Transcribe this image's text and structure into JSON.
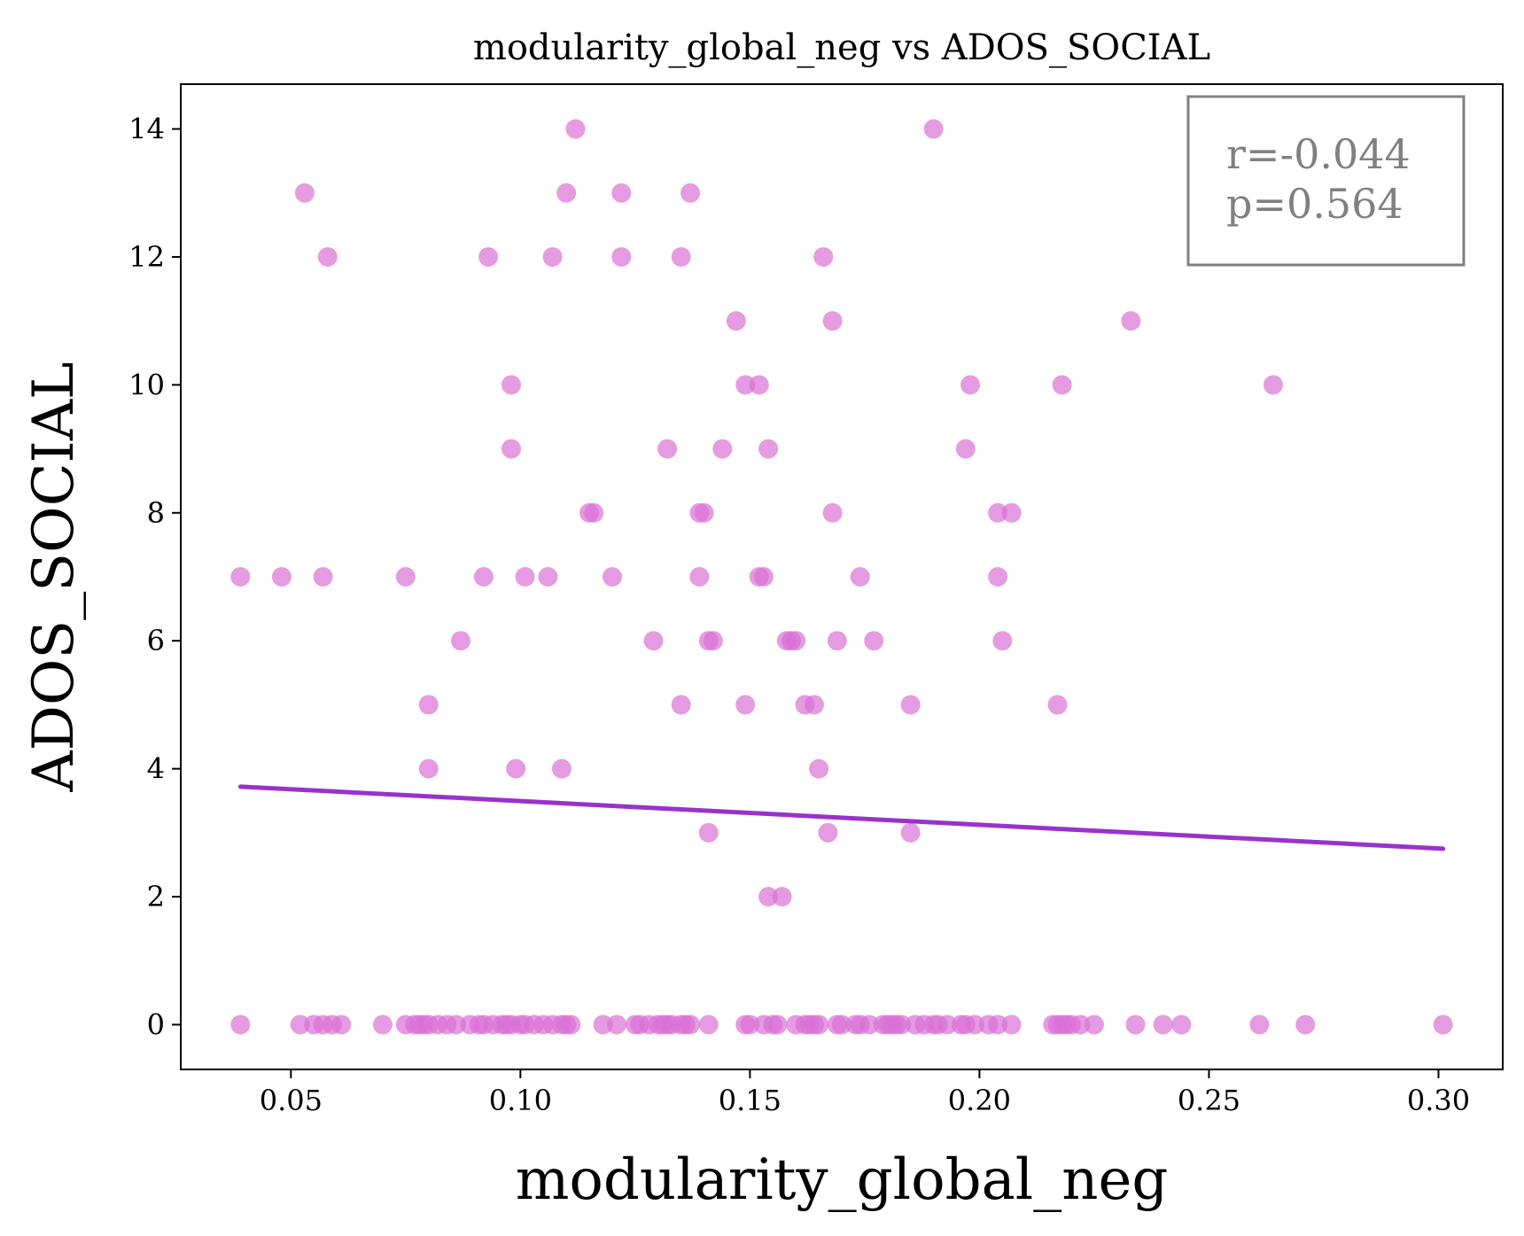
{
  "chart_data": {
    "type": "scatter",
    "title": "modularity_global_neg vs ADOS_SOCIAL",
    "xlabel": "modularity_global_neg",
    "ylabel": "ADOS_SOCIAL",
    "xlim": [
      0.026,
      0.314
    ],
    "ylim": [
      -0.7,
      14.7
    ],
    "xticks": [
      0.05,
      0.1,
      0.15,
      0.2,
      0.25,
      0.3
    ],
    "xtick_labels": [
      "0.05",
      "0.10",
      "0.15",
      "0.20",
      "0.25",
      "0.30"
    ],
    "yticks": [
      0,
      2,
      4,
      6,
      8,
      10,
      12,
      14
    ],
    "ytick_labels": [
      "0",
      "2",
      "4",
      "6",
      "8",
      "10",
      "12",
      "14"
    ],
    "grid": false,
    "point_color": "#da70d6",
    "line_color": "#9932cc",
    "annotation": {
      "lines": [
        "r=-0.044",
        "p=0.564"
      ],
      "position": "top-right",
      "color": "#808080"
    },
    "regression_line": {
      "x": [
        0.039,
        0.301
      ],
      "y": [
        3.72,
        2.75
      ]
    },
    "points": [
      [
        0.112,
        14
      ],
      [
        0.19,
        14
      ],
      [
        0.053,
        13
      ],
      [
        0.11,
        13
      ],
      [
        0.122,
        13
      ],
      [
        0.137,
        13
      ],
      [
        0.058,
        12
      ],
      [
        0.093,
        12
      ],
      [
        0.107,
        12
      ],
      [
        0.122,
        12
      ],
      [
        0.135,
        12
      ],
      [
        0.166,
        12
      ],
      [
        0.147,
        11
      ],
      [
        0.168,
        11
      ],
      [
        0.233,
        11
      ],
      [
        0.098,
        10
      ],
      [
        0.149,
        10
      ],
      [
        0.152,
        10
      ],
      [
        0.198,
        10
      ],
      [
        0.218,
        10
      ],
      [
        0.264,
        10
      ],
      [
        0.098,
        9
      ],
      [
        0.132,
        9
      ],
      [
        0.144,
        9
      ],
      [
        0.154,
        9
      ],
      [
        0.197,
        9
      ],
      [
        0.115,
        8
      ],
      [
        0.116,
        8
      ],
      [
        0.139,
        8
      ],
      [
        0.14,
        8
      ],
      [
        0.168,
        8
      ],
      [
        0.204,
        8
      ],
      [
        0.207,
        8
      ],
      [
        0.039,
        7
      ],
      [
        0.048,
        7
      ],
      [
        0.057,
        7
      ],
      [
        0.075,
        7
      ],
      [
        0.092,
        7
      ],
      [
        0.101,
        7
      ],
      [
        0.106,
        7
      ],
      [
        0.12,
        7
      ],
      [
        0.139,
        7
      ],
      [
        0.152,
        7
      ],
      [
        0.153,
        7
      ],
      [
        0.174,
        7
      ],
      [
        0.204,
        7
      ],
      [
        0.087,
        6
      ],
      [
        0.129,
        6
      ],
      [
        0.141,
        6
      ],
      [
        0.142,
        6
      ],
      [
        0.158,
        6
      ],
      [
        0.159,
        6
      ],
      [
        0.16,
        6
      ],
      [
        0.169,
        6
      ],
      [
        0.177,
        6
      ],
      [
        0.205,
        6
      ],
      [
        0.08,
        5
      ],
      [
        0.135,
        5
      ],
      [
        0.149,
        5
      ],
      [
        0.162,
        5
      ],
      [
        0.164,
        5
      ],
      [
        0.185,
        5
      ],
      [
        0.217,
        5
      ],
      [
        0.08,
        4
      ],
      [
        0.099,
        4
      ],
      [
        0.109,
        4
      ],
      [
        0.165,
        4
      ],
      [
        0.141,
        3
      ],
      [
        0.167,
        3
      ],
      [
        0.185,
        3
      ],
      [
        0.154,
        2
      ],
      [
        0.157,
        2
      ],
      [
        0.039,
        0
      ],
      [
        0.052,
        0
      ],
      [
        0.055,
        0
      ],
      [
        0.057,
        0
      ],
      [
        0.059,
        0
      ],
      [
        0.061,
        0
      ],
      [
        0.07,
        0
      ],
      [
        0.075,
        0
      ],
      [
        0.077,
        0
      ],
      [
        0.078,
        0
      ],
      [
        0.079,
        0
      ],
      [
        0.08,
        0
      ],
      [
        0.082,
        0
      ],
      [
        0.084,
        0
      ],
      [
        0.086,
        0
      ],
      [
        0.089,
        0
      ],
      [
        0.091,
        0
      ],
      [
        0.092,
        0
      ],
      [
        0.094,
        0
      ],
      [
        0.096,
        0
      ],
      [
        0.097,
        0
      ],
      [
        0.098,
        0
      ],
      [
        0.1,
        0
      ],
      [
        0.101,
        0
      ],
      [
        0.103,
        0
      ],
      [
        0.105,
        0
      ],
      [
        0.107,
        0
      ],
      [
        0.109,
        0
      ],
      [
        0.11,
        0
      ],
      [
        0.111,
        0
      ],
      [
        0.118,
        0
      ],
      [
        0.121,
        0
      ],
      [
        0.125,
        0
      ],
      [
        0.126,
        0
      ],
      [
        0.128,
        0
      ],
      [
        0.13,
        0
      ],
      [
        0.131,
        0
      ],
      [
        0.132,
        0
      ],
      [
        0.133,
        0
      ],
      [
        0.135,
        0
      ],
      [
        0.136,
        0
      ],
      [
        0.137,
        0
      ],
      [
        0.141,
        0
      ],
      [
        0.149,
        0
      ],
      [
        0.15,
        0
      ],
      [
        0.153,
        0
      ],
      [
        0.155,
        0
      ],
      [
        0.156,
        0
      ],
      [
        0.16,
        0
      ],
      [
        0.162,
        0
      ],
      [
        0.163,
        0
      ],
      [
        0.164,
        0
      ],
      [
        0.165,
        0
      ],
      [
        0.169,
        0
      ],
      [
        0.17,
        0
      ],
      [
        0.173,
        0
      ],
      [
        0.174,
        0
      ],
      [
        0.176,
        0
      ],
      [
        0.179,
        0
      ],
      [
        0.18,
        0
      ],
      [
        0.181,
        0
      ],
      [
        0.182,
        0
      ],
      [
        0.183,
        0
      ],
      [
        0.186,
        0
      ],
      [
        0.188,
        0
      ],
      [
        0.19,
        0
      ],
      [
        0.191,
        0
      ],
      [
        0.193,
        0
      ],
      [
        0.196,
        0
      ],
      [
        0.197,
        0
      ],
      [
        0.199,
        0
      ],
      [
        0.202,
        0
      ],
      [
        0.204,
        0
      ],
      [
        0.207,
        0
      ],
      [
        0.216,
        0
      ],
      [
        0.217,
        0
      ],
      [
        0.218,
        0
      ],
      [
        0.219,
        0
      ],
      [
        0.22,
        0
      ],
      [
        0.222,
        0
      ],
      [
        0.225,
        0
      ],
      [
        0.234,
        0
      ],
      [
        0.24,
        0
      ],
      [
        0.244,
        0
      ],
      [
        0.261,
        0
      ],
      [
        0.271,
        0
      ],
      [
        0.301,
        0
      ]
    ]
  }
}
